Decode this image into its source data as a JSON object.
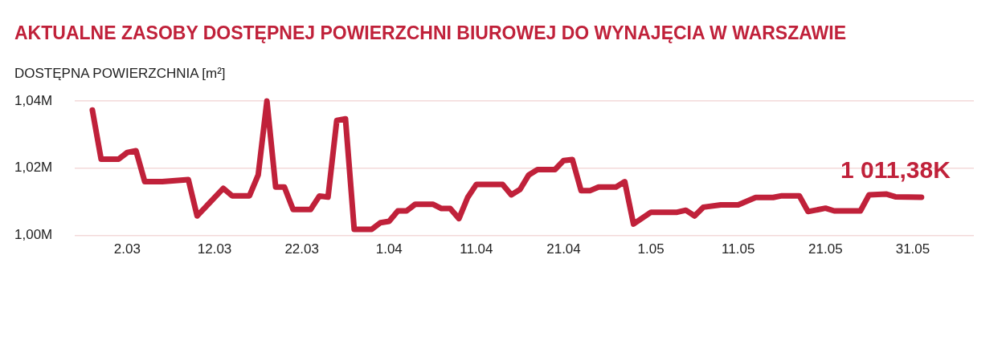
{
  "chart_data": {
    "type": "line",
    "title": "AKTUALNE ZASOBY DOSTĘPNEJ POWIERZCHNI BIUROWEJ DO WYNAJĘCIA W WARSZAWIE",
    "ylabel": "DOSTĘPNA POWIERZCHNIA [m²]",
    "x": [
      "--02-26",
      "--02-27",
      "--03-01",
      "--03-02",
      "--03-03",
      "--03-04",
      "--03-06",
      "--03-09",
      "--03-10",
      "--03-13",
      "--03-14",
      "--03-16",
      "--03-17",
      "--03-18",
      "--03-19",
      "--03-20",
      "--03-21",
      "--03-23",
      "--03-24",
      "--03-25",
      "--03-26",
      "--03-27",
      "--03-28",
      "--03-30",
      "--03-31",
      "--04-01",
      "--04-02",
      "--04-03",
      "--04-04",
      "--04-06",
      "--04-07",
      "--04-08",
      "--04-09",
      "--04-10",
      "--04-11",
      "--04-14",
      "--04-15",
      "--04-16",
      "--04-17",
      "--04-18",
      "--04-20",
      "--04-21",
      "--04-22",
      "--04-23",
      "--04-24",
      "--04-25",
      "--04-27",
      "--04-28",
      "--04-29",
      "--05-01",
      "--05-04",
      "--05-05",
      "--05-06",
      "--05-07",
      "--05-09",
      "--05-11",
      "--05-13",
      "--05-15",
      "--05-16",
      "--05-18",
      "--05-19",
      "--05-21",
      "--05-22",
      "--05-25",
      "--05-26",
      "--05-28",
      "--05-29",
      "--06-01"
    ],
    "series": [
      {
        "color": "#c0213a",
        "values": [
          1037300,
          1022700,
          1022700,
          1024700,
          1025200,
          1016000,
          1016000,
          1016600,
          1005800,
          1014000,
          1011800,
          1011800,
          1018000,
          1040000,
          1014400,
          1014400,
          1007700,
          1007700,
          1011700,
          1011400,
          1034200,
          1034700,
          1001800,
          1001800,
          1003800,
          1004200,
          1007300,
          1007300,
          1009300,
          1009300,
          1008000,
          1008000,
          1005000,
          1011300,
          1015200,
          1015200,
          1012100,
          1013700,
          1018000,
          1019600,
          1019600,
          1022300,
          1022600,
          1013300,
          1013300,
          1014400,
          1014400,
          1016000,
          1003400,
          1006900,
          1006900,
          1007500,
          1005800,
          1008400,
          1009100,
          1009100,
          1011300,
          1011300,
          1011800,
          1011800,
          1007100,
          1008100,
          1007300,
          1007300,
          1012100,
          1012300,
          1011500,
          1011380
        ]
      }
    ],
    "xlim": [
      "--02-24",
      "--06-07"
    ],
    "xticks": [
      {
        "value": "--03-02",
        "label": "2.03"
      },
      {
        "value": "--03-12",
        "label": "12.03"
      },
      {
        "value": "--03-22",
        "label": "22.03"
      },
      {
        "value": "--04-01",
        "label": "1.04"
      },
      {
        "value": "--04-11",
        "label": "11.04"
      },
      {
        "value": "--04-21",
        "label": "21.04"
      },
      {
        "value": "--05-01",
        "label": "1.05"
      },
      {
        "value": "--05-11",
        "label": "11.05"
      },
      {
        "value": "--05-21",
        "label": "21.05"
      },
      {
        "value": "--05-31",
        "label": "31.05"
      }
    ],
    "ylim": [
      1000000,
      1040000
    ],
    "yticks": [
      {
        "value": 1000000,
        "label": "1,00M"
      },
      {
        "value": 1020000,
        "label": "1,02M"
      },
      {
        "value": 1040000,
        "label": "1,04M"
      }
    ],
    "grid": "y",
    "legend": false,
    "marker": "none",
    "line_style": "solid",
    "annotations": [
      {
        "text": "1 011,38K",
        "x": "--06-01",
        "y": 1011380
      }
    ]
  }
}
